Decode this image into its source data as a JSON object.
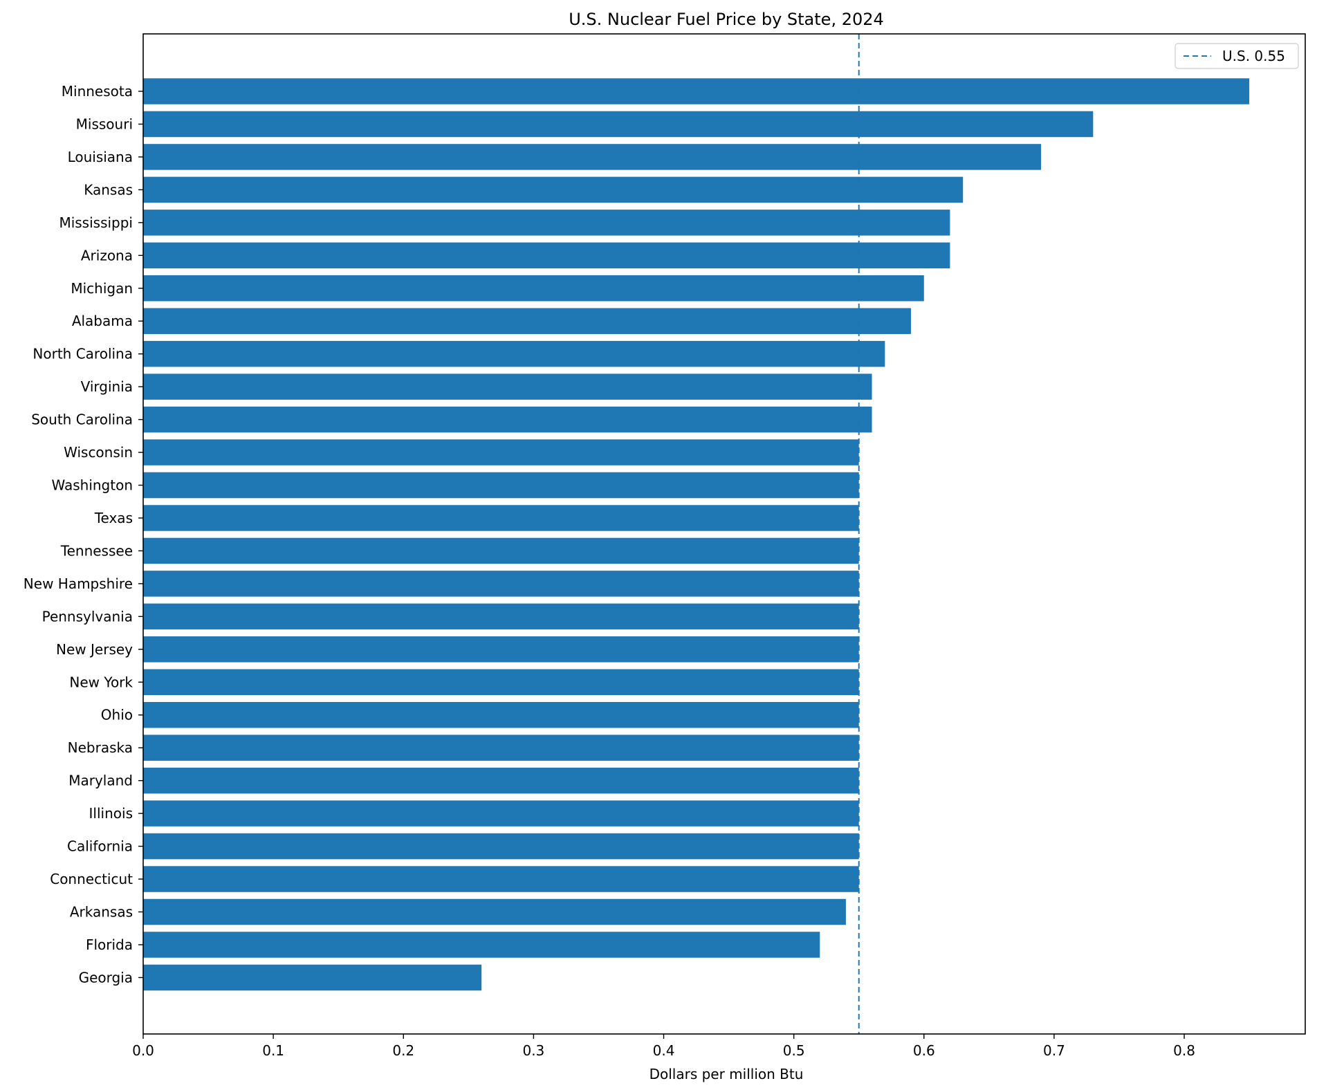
{
  "chart_data": {
    "type": "bar",
    "orientation": "horizontal",
    "title": "U.S. Nuclear Fuel Price by State, 2024",
    "xlabel": "Dollars per million Btu",
    "ylabel": "",
    "xlim": [
      0,
      0.893
    ],
    "xticks": [
      "0.0",
      "0.1",
      "0.2",
      "0.3",
      "0.4",
      "0.5",
      "0.6",
      "0.7",
      "0.8"
    ],
    "categories": [
      "Minnesota",
      "Missouri",
      "Louisiana",
      "Kansas",
      "Mississippi",
      "Arizona",
      "Michigan",
      "Alabama",
      "North Carolina",
      "Virginia",
      "South Carolina",
      "Wisconsin",
      "Washington",
      "Texas",
      "Tennessee",
      "New Hampshire",
      "Pennsylvania",
      "New Jersey",
      "New York",
      "Ohio",
      "Nebraska",
      "Maryland",
      "Illinois",
      "California",
      "Connecticut",
      "Arkansas",
      "Florida",
      "Georgia"
    ],
    "values": [
      0.85,
      0.73,
      0.69,
      0.63,
      0.62,
      0.62,
      0.6,
      0.59,
      0.57,
      0.56,
      0.56,
      0.55,
      0.55,
      0.55,
      0.55,
      0.55,
      0.55,
      0.55,
      0.55,
      0.55,
      0.55,
      0.55,
      0.55,
      0.55,
      0.55,
      0.54,
      0.52,
      0.26
    ],
    "bar_color": "#1f77b4",
    "reference_line": {
      "value": 0.55,
      "label": "U.S. 0.55",
      "style": "dashed",
      "color": "#1f77b4"
    },
    "legend_position": "top-right",
    "grid": false
  }
}
